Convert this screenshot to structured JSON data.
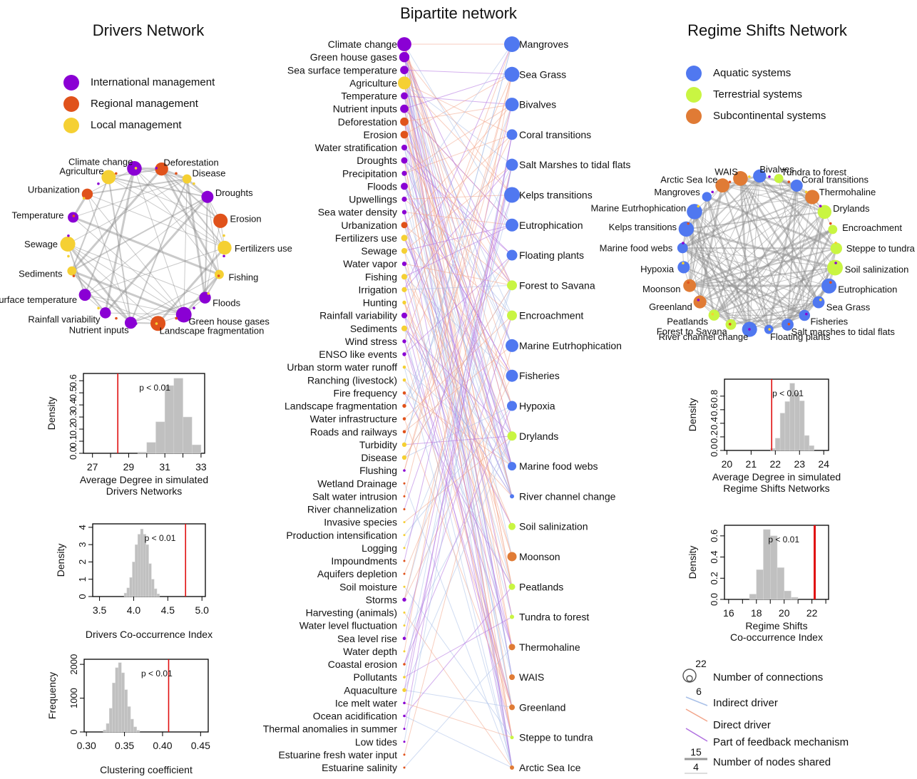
{
  "titles": {
    "center": "Bipartite network",
    "left": "Drivers Network",
    "right": "Regime Shifts Network"
  },
  "colors": {
    "international": "#8a00d4",
    "regional": "#e0521b",
    "local": "#f5d033",
    "aquatic": "#5078f0",
    "terrestrial": "#c9f542",
    "subcontinental": "#e07b35",
    "indirect": "#a9c0e8",
    "direct": "#f2a58a",
    "feedback": "#b070e0",
    "hist": "#c0c0c0",
    "redline": "#e01010"
  },
  "legend_left": [
    {
      "label": "International management",
      "color": "#8a00d4"
    },
    {
      "label": "Regional management",
      "color": "#e0521b"
    },
    {
      "label": "Local management",
      "color": "#f5d033"
    }
  ],
  "legend_right": [
    {
      "label": "Aquatic systems",
      "color": "#5078f0"
    },
    {
      "label": "Terrestrial systems",
      "color": "#c9f542"
    },
    {
      "label": "Subcontinental systems",
      "color": "#e07b35"
    }
  ],
  "legend_bottom": {
    "size_big": "22",
    "size_small": "6",
    "connections": "Number of connections",
    "indirect": "Indirect driver",
    "direct": "Direct driver",
    "feedback": "Part of feedback mechanism",
    "nodes_big": "15",
    "nodes_small": "4",
    "nodes_shared": "Number of nodes shared"
  },
  "drivers": [
    {
      "label": "Climate change",
      "type": "international",
      "size": 22
    },
    {
      "label": "Green house gases",
      "type": "international",
      "size": 16
    },
    {
      "label": "Sea surface temperature",
      "type": "international",
      "size": 13
    },
    {
      "label": "Agriculture",
      "type": "local",
      "size": 20
    },
    {
      "label": "Temperature",
      "type": "international",
      "size": 11
    },
    {
      "label": "Nutrient inputs",
      "type": "international",
      "size": 13
    },
    {
      "label": "Deforestation",
      "type": "regional",
      "size": 13
    },
    {
      "label": "Erosion",
      "type": "regional",
      "size": 12
    },
    {
      "label": "Water stratification",
      "type": "international",
      "size": 9
    },
    {
      "label": "Droughts",
      "type": "international",
      "size": 10
    },
    {
      "label": "Precipitation",
      "type": "international",
      "size": 8
    },
    {
      "label": "Floods",
      "type": "international",
      "size": 11
    },
    {
      "label": "Upwellings",
      "type": "international",
      "size": 8
    },
    {
      "label": "Sea water density",
      "type": "international",
      "size": 7
    },
    {
      "label": "Urbanization",
      "type": "regional",
      "size": 10
    },
    {
      "label": "Fertilizers use",
      "type": "local",
      "size": 10
    },
    {
      "label": "Sewage",
      "type": "local",
      "size": 9
    },
    {
      "label": "Water vapor",
      "type": "international",
      "size": 7
    },
    {
      "label": "Fishing",
      "type": "local",
      "size": 9
    },
    {
      "label": "Irrigation",
      "type": "local",
      "size": 8
    },
    {
      "label": "Hunting",
      "type": "local",
      "size": 6
    },
    {
      "label": "Rainfall variability",
      "type": "international",
      "size": 9
    },
    {
      "label": "Sediments",
      "type": "local",
      "size": 9
    },
    {
      "label": "Wind stress",
      "type": "international",
      "size": 6
    },
    {
      "label": "ENSO like events",
      "type": "international",
      "size": 6
    },
    {
      "label": "Urban storm water runoff",
      "type": "local",
      "size": 5
    },
    {
      "label": "Ranching (livestock)",
      "type": "local",
      "size": 5
    },
    {
      "label": "Fire frequency",
      "type": "regional",
      "size": 5
    },
    {
      "label": "Landscape fragmentation",
      "type": "regional",
      "size": 6
    },
    {
      "label": "Water infrastructure",
      "type": "regional",
      "size": 5
    },
    {
      "label": "Roads and railways",
      "type": "regional",
      "size": 5
    },
    {
      "label": "Turbidity",
      "type": "local",
      "size": 7
    },
    {
      "label": "Disease",
      "type": "local",
      "size": 7
    },
    {
      "label": "Flushing",
      "type": "international",
      "size": 4
    },
    {
      "label": "Wetland Drainage",
      "type": "regional",
      "size": 3
    },
    {
      "label": "Salt water intrusion",
      "type": "regional",
      "size": 3
    },
    {
      "label": "River channelization",
      "type": "regional",
      "size": 3
    },
    {
      "label": "Invasive species",
      "type": "local",
      "size": 3
    },
    {
      "label": "Production intensification",
      "type": "local",
      "size": 3
    },
    {
      "label": "Logging",
      "type": "local",
      "size": 3
    },
    {
      "label": "Impoundments",
      "type": "regional",
      "size": 3
    },
    {
      "label": "Aquifers depletion",
      "type": "regional",
      "size": 3
    },
    {
      "label": "Soil moisture",
      "type": "local",
      "size": 3
    },
    {
      "label": "Storms",
      "type": "international",
      "size": 6
    },
    {
      "label": "Harvesting (animals)",
      "type": "local",
      "size": 3
    },
    {
      "label": "Water level fluctuation",
      "type": "local",
      "size": 3
    },
    {
      "label": "Sea level rise",
      "type": "international",
      "size": 5
    },
    {
      "label": "Water depth",
      "type": "local",
      "size": 3
    },
    {
      "label": "Coastal erosion",
      "type": "regional",
      "size": 4
    },
    {
      "label": "Pollutants",
      "type": "local",
      "size": 4
    },
    {
      "label": "Aquaculture",
      "type": "local",
      "size": 6
    },
    {
      "label": "Ice melt water",
      "type": "international",
      "size": 4
    },
    {
      "label": "Ocean acidification",
      "type": "international",
      "size": 4
    },
    {
      "label": "Thermal anomalies in summer",
      "type": "international",
      "size": 3
    },
    {
      "label": "Low tides",
      "type": "international",
      "size": 3
    },
    {
      "label": "Estuarine fresh water input",
      "type": "regional",
      "size": 3
    },
    {
      "label": "Estuarine salinity",
      "type": "regional",
      "size": 3
    }
  ],
  "regime_shifts": [
    {
      "label": "Mangroves",
      "type": "aquatic",
      "size": 22
    },
    {
      "label": "Sea Grass",
      "type": "aquatic",
      "size": 21
    },
    {
      "label": "Bivalves",
      "type": "aquatic",
      "size": 19
    },
    {
      "label": "Coral transitions",
      "type": "aquatic",
      "size": 15
    },
    {
      "label": "Salt Marshes to tidal flats",
      "type": "aquatic",
      "size": 17
    },
    {
      "label": "Kelps transitions",
      "type": "aquatic",
      "size": 22
    },
    {
      "label": "Eutrophication",
      "type": "aquatic",
      "size": 18
    },
    {
      "label": "Floating plants",
      "type": "aquatic",
      "size": 15
    },
    {
      "label": "Forest to Savana",
      "type": "terrestrial",
      "size": 14
    },
    {
      "label": "Encroachment",
      "type": "terrestrial",
      "size": 14
    },
    {
      "label": "Marine Eutrhophication",
      "type": "aquatic",
      "size": 18
    },
    {
      "label": "Fisheries",
      "type": "aquatic",
      "size": 17
    },
    {
      "label": "Hypoxia",
      "type": "aquatic",
      "size": 14
    },
    {
      "label": "Drylands",
      "type": "terrestrial",
      "size": 13
    },
    {
      "label": "Marine food webs",
      "type": "aquatic",
      "size": 12
    },
    {
      "label": "River channel change",
      "type": "aquatic",
      "size": 6
    },
    {
      "label": "Soil salinization",
      "type": "terrestrial",
      "size": 10
    },
    {
      "label": "Moonson",
      "type": "subcontinental",
      "size": 13
    },
    {
      "label": "Peatlands",
      "type": "terrestrial",
      "size": 9
    },
    {
      "label": "Tundra to forest",
      "type": "terrestrial",
      "size": 6
    },
    {
      "label": "Thermohaline",
      "type": "subcontinental",
      "size": 9
    },
    {
      "label": "WAIS",
      "type": "subcontinental",
      "size": 8
    },
    {
      "label": "Greenland",
      "type": "subcontinental",
      "size": 8
    },
    {
      "label": "Steppe to tundra",
      "type": "terrestrial",
      "size": 5
    },
    {
      "label": "Arctic Sea Ice",
      "type": "subcontinental",
      "size": 6
    }
  ],
  "drivers_network_labels": [
    {
      "label": "Agriculture",
      "type": "local"
    },
    {
      "label": "Climate change",
      "type": "international"
    },
    {
      "label": "Deforestation",
      "type": "regional"
    },
    {
      "label": "Disease",
      "type": "local"
    },
    {
      "label": "Droughts",
      "type": "international"
    },
    {
      "label": "Erosion",
      "type": "regional"
    },
    {
      "label": "Fertilizers use",
      "type": "local"
    },
    {
      "label": "Fishing",
      "type": "local"
    },
    {
      "label": "Floods",
      "type": "international"
    },
    {
      "label": "Green house gases",
      "type": "international"
    },
    {
      "label": "Landscape fragmentation",
      "type": "regional"
    },
    {
      "label": "Nutrient inputs",
      "type": "international"
    },
    {
      "label": "Rainfall variability",
      "type": "international"
    },
    {
      "label": "Sea surface temperature",
      "type": "international"
    },
    {
      "label": "Sediments",
      "type": "local"
    },
    {
      "label": "Sewage",
      "type": "local"
    },
    {
      "label": "Temperature",
      "type": "international"
    },
    {
      "label": "Urbanization",
      "type": "regional"
    }
  ],
  "regime_network_labels": [
    {
      "label": "Arctic Sea Ice",
      "type": "subcontinental"
    },
    {
      "label": "WAIS",
      "type": "subcontinental"
    },
    {
      "label": "Bivalves",
      "type": "aquatic"
    },
    {
      "label": "Tundra to forest",
      "type": "terrestrial"
    },
    {
      "label": "Coral transitions",
      "type": "aquatic"
    },
    {
      "label": "Thermohaline",
      "type": "subcontinental"
    },
    {
      "label": "Drylands",
      "type": "terrestrial"
    },
    {
      "label": "Encroachment",
      "type": "terrestrial"
    },
    {
      "label": "Steppe to tundra",
      "type": "terrestrial"
    },
    {
      "label": "Soil salinization",
      "type": "terrestrial"
    },
    {
      "label": "Eutrophication",
      "type": "aquatic"
    },
    {
      "label": "Sea Grass",
      "type": "aquatic"
    },
    {
      "label": "Fisheries",
      "type": "aquatic"
    },
    {
      "label": "Salt marshes to tidal flats",
      "type": "aquatic"
    },
    {
      "label": "Floating plants",
      "type": "aquatic"
    },
    {
      "label": "River channel change",
      "type": "aquatic"
    },
    {
      "label": "Forest to Savana",
      "type": "terrestrial"
    },
    {
      "label": "Peatlands",
      "type": "terrestrial"
    },
    {
      "label": "Greenland",
      "type": "subcontinental"
    },
    {
      "label": "Moonson",
      "type": "subcontinental"
    },
    {
      "label": "Hypoxia",
      "type": "aquatic"
    },
    {
      "label": "Marine food webs",
      "type": "aquatic"
    },
    {
      "label": "Kelps transitions",
      "type": "aquatic"
    },
    {
      "label": "Marine Eutrhophication",
      "type": "aquatic"
    },
    {
      "label": "Mangroves",
      "type": "aquatic"
    }
  ],
  "chart_data": [
    {
      "type": "histogram",
      "panel": "drivers-degree",
      "annotation": "p < 0.01",
      "xlabel": "Average Degree in simulated Drivers Networks",
      "ylabel": "Density",
      "xticks": [
        "27",
        "28",
        "29",
        "30",
        "31",
        "32",
        "33"
      ],
      "xlabels_shown": [
        "27",
        "29",
        "31",
        "33"
      ],
      "yticks": [
        "0.0",
        "0.1",
        "0.2",
        "0.3",
        "0.4",
        "0.5",
        "0.6"
      ],
      "xlim": [
        26.5,
        33.2
      ],
      "ylim": [
        0,
        0.66
      ],
      "bins": [
        [
          29.5,
          30,
          0.01
        ],
        [
          30,
          30.5,
          0.09
        ],
        [
          30.5,
          31,
          0.26
        ],
        [
          31,
          31.5,
          0.56
        ],
        [
          31.5,
          32,
          0.62
        ],
        [
          32,
          32.5,
          0.3
        ],
        [
          32.5,
          33,
          0.07
        ]
      ],
      "observed": 28.4
    },
    {
      "type": "histogram",
      "panel": "drivers-cooccurrence",
      "annotation": "p < 0.01",
      "xlabel": "Drivers Co-occurrence Index",
      "ylabel": "Density",
      "xticks": [
        "3.5",
        "4.0",
        "4.5",
        "5.0"
      ],
      "xlabels_shown": [
        "3.5",
        "4.0",
        "4.5",
        "5.0"
      ],
      "yticks": [
        "0",
        "1",
        "2",
        "3",
        "4"
      ],
      "xlim": [
        3.4,
        5.05
      ],
      "ylim": [
        0,
        4.2
      ],
      "bins": [
        [
          3.86,
          3.9,
          0.2
        ],
        [
          3.9,
          3.94,
          0.5
        ],
        [
          3.94,
          3.98,
          1.1
        ],
        [
          3.98,
          4.02,
          2.0
        ],
        [
          4.02,
          4.06,
          3.0
        ],
        [
          4.06,
          4.1,
          3.6
        ],
        [
          4.1,
          4.14,
          3.9
        ],
        [
          4.14,
          4.18,
          3.6
        ],
        [
          4.18,
          4.22,
          3.0
        ],
        [
          4.22,
          4.26,
          1.9
        ],
        [
          4.26,
          4.3,
          1.0
        ],
        [
          4.3,
          4.34,
          0.45
        ],
        [
          4.34,
          4.38,
          0.15
        ]
      ],
      "observed": 4.76
    },
    {
      "type": "histogram",
      "panel": "drivers-clustering",
      "annotation": "p < 0.01",
      "xlabel": "Clustering coefficient",
      "ylabel": "Frequency",
      "xticks": [
        "0.30",
        "0.35",
        "0.40",
        "0.45"
      ],
      "xlabels_shown": [
        "0.30",
        "0.35",
        "0.40",
        "0.45"
      ],
      "yticks": [
        "0",
        "1000",
        "2000"
      ],
      "xlim": [
        0.297,
        0.46
      ],
      "ylim": [
        0,
        2150
      ],
      "bins": [
        [
          0.322,
          0.326,
          60
        ],
        [
          0.326,
          0.33,
          250
        ],
        [
          0.33,
          0.334,
          700
        ],
        [
          0.334,
          0.338,
          1450
        ],
        [
          0.338,
          0.342,
          1900
        ],
        [
          0.342,
          0.346,
          2050
        ],
        [
          0.346,
          0.35,
          1750
        ],
        [
          0.35,
          0.354,
          1250
        ],
        [
          0.354,
          0.358,
          750
        ],
        [
          0.358,
          0.362,
          380
        ],
        [
          0.362,
          0.366,
          150
        ],
        [
          0.366,
          0.37,
          50
        ]
      ],
      "observed": 0.408
    },
    {
      "type": "histogram",
      "panel": "regime-degree",
      "annotation": "p < 0.01",
      "xlabel": "Average Degree in simulated Regime Shifts Networks",
      "ylabel": "Density",
      "xticks": [
        "20",
        "21",
        "22",
        "23",
        "24"
      ],
      "xlabels_shown": [
        "20",
        "21",
        "22",
        "23",
        "24"
      ],
      "yticks": [
        "0.0",
        "0.2",
        "0.4",
        "0.6",
        "0.8"
      ],
      "xlim": [
        19.9,
        24.2
      ],
      "ylim": [
        0,
        1.05
      ],
      "bins": [
        [
          21.8,
          22,
          0.03
        ],
        [
          22,
          22.2,
          0.18
        ],
        [
          22.2,
          22.4,
          0.55
        ],
        [
          22.4,
          22.6,
          0.72
        ],
        [
          22.6,
          22.8,
          0.99
        ],
        [
          22.8,
          23,
          0.85
        ],
        [
          23,
          23.2,
          0.73
        ],
        [
          23.2,
          23.4,
          0.22
        ],
        [
          23.4,
          23.6,
          0.07
        ]
      ],
      "observed": 21.85
    },
    {
      "type": "histogram",
      "panel": "regime-cooccurrence",
      "annotation": "p < 0.01",
      "xlabel": "Regime Shifts Co-occurrence Index",
      "ylabel": "Density",
      "xticks": [
        "16",
        "17",
        "18",
        "19",
        "20",
        "21",
        "22",
        "23"
      ],
      "xlabels_shown": [
        "16",
        "18",
        "20",
        "22"
      ],
      "yticks": [
        "0.0",
        "0.2",
        "0.4",
        "0.6"
      ],
      "xlim": [
        15.7,
        23.2
      ],
      "ylim": [
        0,
        0.7
      ],
      "bins": [
        [
          17.5,
          18,
          0.05
        ],
        [
          18,
          18.5,
          0.28
        ],
        [
          18.5,
          19,
          0.66
        ],
        [
          19,
          19.5,
          0.6
        ],
        [
          19.5,
          20,
          0.3
        ],
        [
          20,
          20.5,
          0.08
        ],
        [
          20.5,
          21,
          0.02
        ]
      ],
      "observed": 22.2
    }
  ]
}
